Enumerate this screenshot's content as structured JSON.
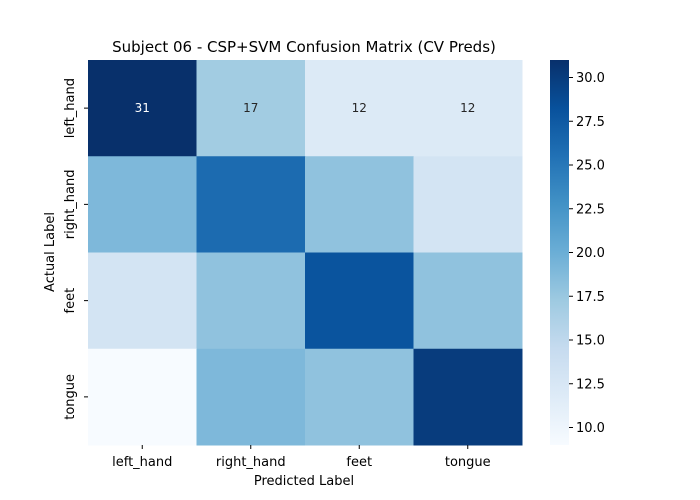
{
  "chart_data": {
    "type": "heatmap",
    "title": "Subject 06 - CSP+SVM Confusion Matrix (CV Preds)",
    "xlabel": "Predicted Label",
    "ylabel": "Actual Label",
    "x_categories": [
      "left_hand",
      "right_hand",
      "feet",
      "tongue"
    ],
    "y_categories": [
      "left_hand",
      "right_hand",
      "feet",
      "tongue"
    ],
    "values": [
      [
        31,
        17,
        12,
        12
      ],
      [
        19,
        26,
        18,
        13
      ],
      [
        13,
        18,
        28,
        18
      ],
      [
        9,
        19,
        18,
        30
      ]
    ],
    "annotated_rows": [
      0
    ],
    "colormap": [
      "#f7fbff",
      "#deebf7",
      "#c6dbef",
      "#9ecae1",
      "#6baed6",
      "#4292c6",
      "#2171b5",
      "#08519c",
      "#08306b"
    ],
    "colorbar": {
      "vmin": 9,
      "vmax": 31,
      "ticks": [
        "10.0",
        "12.5",
        "15.0",
        "17.5",
        "20.0",
        "22.5",
        "25.0",
        "27.5",
        "30.0"
      ]
    },
    "grid": false
  }
}
